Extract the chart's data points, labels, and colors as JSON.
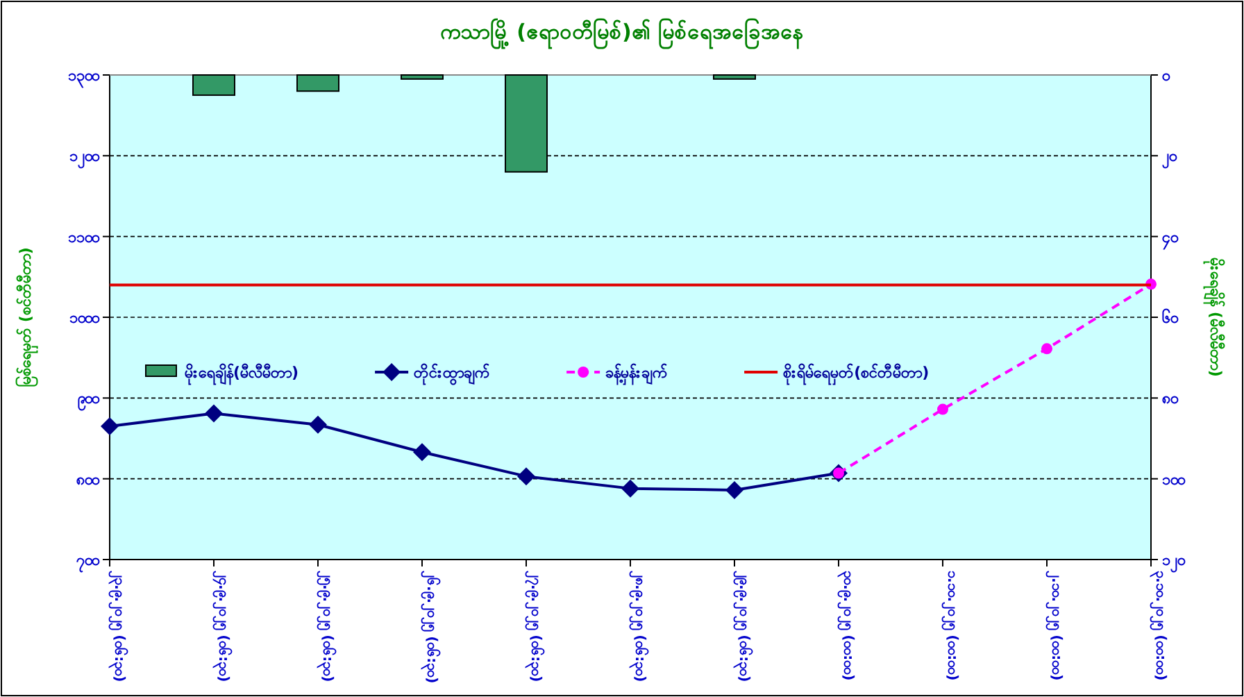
{
  "chart_data": {
    "type": "line",
    "title": "ကသာမြို့ (ဧရာဝတီမြစ်)၏ မြစ်ရေအခြေအနေ",
    "ylabel": "မြစ်ရေမှတ် (စင်တီမီတာ)",
    "y2label": "မိုးရေချိန် (မီလီမီတာ)",
    "categories": [
      "၂၃.၉.၂၀၂၅ (၀၆:၃၀)",
      "၂၄.၉.၂၀၂၅ (၀၆:၃၀)",
      "၂၅.၉.၂၀၂၅ (၀၆:၃၀)",
      "၂၆.၉.၂၀၂၅ (၀၆:၃၀)",
      "၂၇.၉.၂၀၂၅ (၀၆:၃၀)",
      "၂၈.၉.၂၀၂၅ (၀၆:၃၀)",
      "၂၉.၉.၂၀၂၅ (၀၆:၃၀)",
      "၃၀.၉.၂၀၂၅ (၀၀:၀၀)",
      "၁.၁၀.၂၀၂၅ (၀၀:၀၀)",
      "၂.၁၀.၂၀၂၅ (၀၀:၀၀)",
      "၃.၁၀.၂၀၂၅ (၀၀:၀၀)"
    ],
    "series": [
      {
        "name": "မိုးရေချိန်(မီလီမီတာ)",
        "type": "bar",
        "axis": "y2",
        "color": "#339966",
        "values": [
          0,
          5,
          4,
          1,
          24,
          0,
          1,
          null,
          null,
          null,
          null
        ]
      },
      {
        "name": "တိုင်းထွာချက်",
        "color": "#000080",
        "marker": "diamond",
        "line_style": "solid",
        "values": [
          865,
          881,
          867,
          833,
          803,
          788,
          786,
          807,
          null,
          null,
          null
        ]
      },
      {
        "name": "ခန့်မှန်းချက်",
        "color": "#ff00ff",
        "marker": "circle",
        "line_style": "dashed",
        "values": [
          null,
          null,
          null,
          null,
          null,
          null,
          null,
          807,
          886,
          961,
          1041
        ]
      }
    ],
    "ref_lines": [
      {
        "axis": "y",
        "value": 1040,
        "label": "စိုးရိမ်ရေမှတ်(စင်တီမီတာ)",
        "color": "#e00000",
        "line_style": "solid"
      }
    ],
    "ylim": [
      700,
      1300
    ],
    "yticks": [
      {
        "value": 700,
        "label": "၇၀၀"
      },
      {
        "value": 800,
        "label": "၈၀၀"
      },
      {
        "value": 900,
        "label": "၉၀၀"
      },
      {
        "value": 1000,
        "label": "၁၀၀၀"
      },
      {
        "value": 1100,
        "label": "၁၁၀၀"
      },
      {
        "value": 1200,
        "label": "၁၂၀၀"
      },
      {
        "value": 1300,
        "label": "၁၃၀၀"
      }
    ],
    "y2lim": [
      120,
      0
    ],
    "y2ticks": [
      {
        "value": 0,
        "label": "၀"
      },
      {
        "value": 20,
        "label": "၂၀"
      },
      {
        "value": 40,
        "label": "၄၀"
      },
      {
        "value": 60,
        "label": "၆၀"
      },
      {
        "value": 80,
        "label": "၈၀"
      },
      {
        "value": 100,
        "label": "၁၀၀"
      },
      {
        "value": 120,
        "label": "၁၂၀"
      }
    ],
    "grid": "y",
    "legend": "left"
  }
}
